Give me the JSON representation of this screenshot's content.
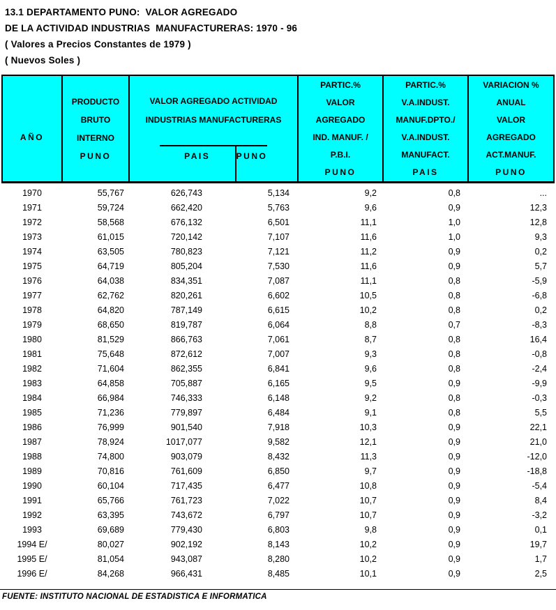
{
  "page": {
    "title_line1": "13.1 DEPARTAMENTO PUNO:  VALOR AGREGADO",
    "title_line2": "DE LA ACTIVIDAD INDUSTRIAS  MANUFACTURERAS: 1970 - 96",
    "subtitle1": "( Valores a Precios Constantes de 1979 )",
    "subtitle2": "( Nuevos Soles )",
    "footer": "FUENTE: INSTITUTO NACIONAL DE ESTADISTICA E INFORMATICA"
  },
  "colors": {
    "header_bg": "#00FFFF",
    "border": "#000000",
    "text": "#000000",
    "page_bg": "#FFFFFF"
  },
  "table": {
    "headers": {
      "col_ano": "AÑO",
      "col_pbi": [
        "PRODUCTO",
        "BRUTO",
        "INTERNO",
        "PUNO"
      ],
      "group_va": [
        "VALOR AGREGADO ACTIVIDAD",
        "INDUSTRIAS MANUFACTURERAS"
      ],
      "sub_pais": "PAIS",
      "sub_puno": "PUNO",
      "col_partic_pbi": [
        "PARTIC.%",
        "VALOR",
        "AGREGADO",
        "IND. MANUF. /",
        "P.B.I.",
        "PUNO"
      ],
      "col_partic_pais": [
        "PARTIC.%",
        "V.A.INDUST.",
        "MANUF.DPTO./",
        "V.A.INDUST.",
        "MANUFACT.",
        "PAIS"
      ],
      "col_variacion": [
        "VARIACION %",
        "ANUAL",
        "VALOR",
        "AGREGADO",
        "ACT.MANUF.",
        "PUNO"
      ]
    },
    "rows": [
      [
        "1970",
        "55,767",
        "626,743",
        "5,134",
        "9,2",
        "0,8",
        "..."
      ],
      [
        "1971",
        "59,724",
        "662,420",
        "5,763",
        "9,6",
        "0,9",
        "12,3"
      ],
      [
        "1972",
        "58,568",
        "676,132",
        "6,501",
        "11,1",
        "1,0",
        "12,8"
      ],
      [
        "1973",
        "61,015",
        "720,142",
        "7,107",
        "11,6",
        "1,0",
        "9,3"
      ],
      [
        "1974",
        "63,505",
        "780,823",
        "7,121",
        "11,2",
        "0,9",
        "0,2"
      ],
      [
        "1975",
        "64,719",
        "805,204",
        "7,530",
        "11,6",
        "0,9",
        "5,7"
      ],
      [
        "1976",
        "64,038",
        "834,351",
        "7,087",
        "11,1",
        "0,8",
        "-5,9"
      ],
      [
        "1977",
        "62,762",
        "820,261",
        "6,602",
        "10,5",
        "0,8",
        "-6,8"
      ],
      [
        "1978",
        "64,820",
        "787,149",
        "6,615",
        "10,2",
        "0,8",
        "0,2"
      ],
      [
        "1979",
        "68,650",
        "819,787",
        "6,064",
        "8,8",
        "0,7",
        "-8,3"
      ],
      [
        "1980",
        "81,529",
        "866,763",
        "7,061",
        "8,7",
        "0,8",
        "16,4"
      ],
      [
        "1981",
        "75,648",
        "872,612",
        "7,007",
        "9,3",
        "0,8",
        "-0,8"
      ],
      [
        "1982",
        "71,604",
        "862,355",
        "6,841",
        "9,6",
        "0,8",
        "-2,4"
      ],
      [
        "1983",
        "64,858",
        "705,887",
        "6,165",
        "9,5",
        "0,9",
        "-9,9"
      ],
      [
        "1984",
        "66,984",
        "746,333",
        "6,148",
        "9,2",
        "0,8",
        "-0,3"
      ],
      [
        "1985",
        "71,236",
        "779,897",
        "6,484",
        "9,1",
        "0,8",
        "5,5"
      ],
      [
        "1986",
        "76,999",
        "901,540",
        "7,918",
        "10,3",
        "0,9",
        "22,1"
      ],
      [
        "1987",
        "78,924",
        "1017,077",
        "9,582",
        "12,1",
        "0,9",
        "21,0"
      ],
      [
        "1988",
        "74,800",
        "903,079",
        "8,432",
        "11,3",
        "0,9",
        "-12,0"
      ],
      [
        "1989",
        "70,816",
        "761,609",
        "6,850",
        "9,7",
        "0,9",
        "-18,8"
      ],
      [
        "1990",
        "60,104",
        "717,435",
        "6,477",
        "10,8",
        "0,9",
        "-5,4"
      ],
      [
        "1991",
        "65,766",
        "761,723",
        "7,022",
        "10,7",
        "0,9",
        "8,4"
      ],
      [
        "1992",
        "63,395",
        "743,672",
        "6,797",
        "10,7",
        "0,9",
        "-3,2"
      ],
      [
        "1993",
        "69,689",
        "779,430",
        "6,803",
        "9,8",
        "0,9",
        "0,1"
      ],
      [
        "1994 E/",
        "80,027",
        "902,192",
        "8,143",
        "10,2",
        "0,9",
        "19,7"
      ],
      [
        "1995 E/",
        "81,054",
        "943,087",
        "8,280",
        "10,2",
        "0,9",
        "1,7"
      ],
      [
        "1996 E/",
        "84,268",
        "966,431",
        "8,485",
        "10,1",
        "0,9",
        "2,5"
      ]
    ]
  }
}
